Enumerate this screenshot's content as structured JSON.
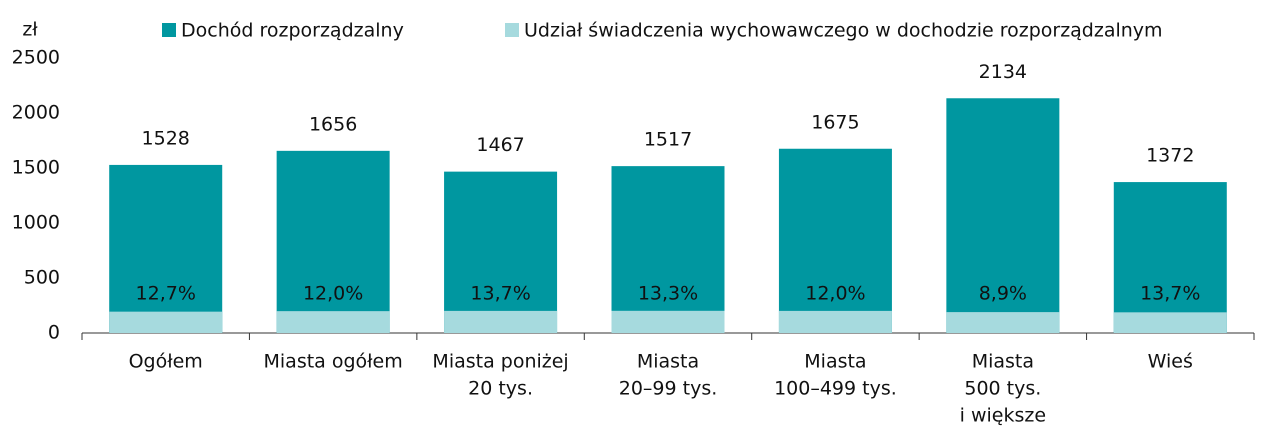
{
  "chart_data": {
    "type": "bar",
    "y_label": "zł",
    "categories": [
      [
        "Ogółem"
      ],
      [
        "Miasta ogółem"
      ],
      [
        "Miasta poniżej",
        "20 tys."
      ],
      [
        "Miasta",
        "20–99 tys."
      ],
      [
        "Miasta",
        "100–499 tys."
      ],
      [
        "Miasta",
        "500 tys.",
        "i większe"
      ],
      [
        "Wieś"
      ]
    ],
    "series": [
      {
        "name": "Dochód rozporządzalny",
        "color": "#0097a0",
        "values": [
          1528,
          1656,
          1467,
          1517,
          1675,
          2134,
          1372
        ]
      },
      {
        "name": "Udział świadczenia wychowawczego w dochodzie rozporządzalnym",
        "color": "#a6dade",
        "values": [
          12.7,
          12.0,
          13.7,
          13.3,
          12.0,
          8.9,
          13.7
        ],
        "value_labels": [
          "12,7%",
          "12,0%",
          "13,7%",
          "13,3%",
          "12,0%",
          "8,9%",
          "13,7%"
        ]
      }
    ],
    "ylim": [
      0,
      2500
    ],
    "yticks": [
      0,
      500,
      1000,
      1500,
      2000,
      2500
    ],
    "grid": false
  }
}
